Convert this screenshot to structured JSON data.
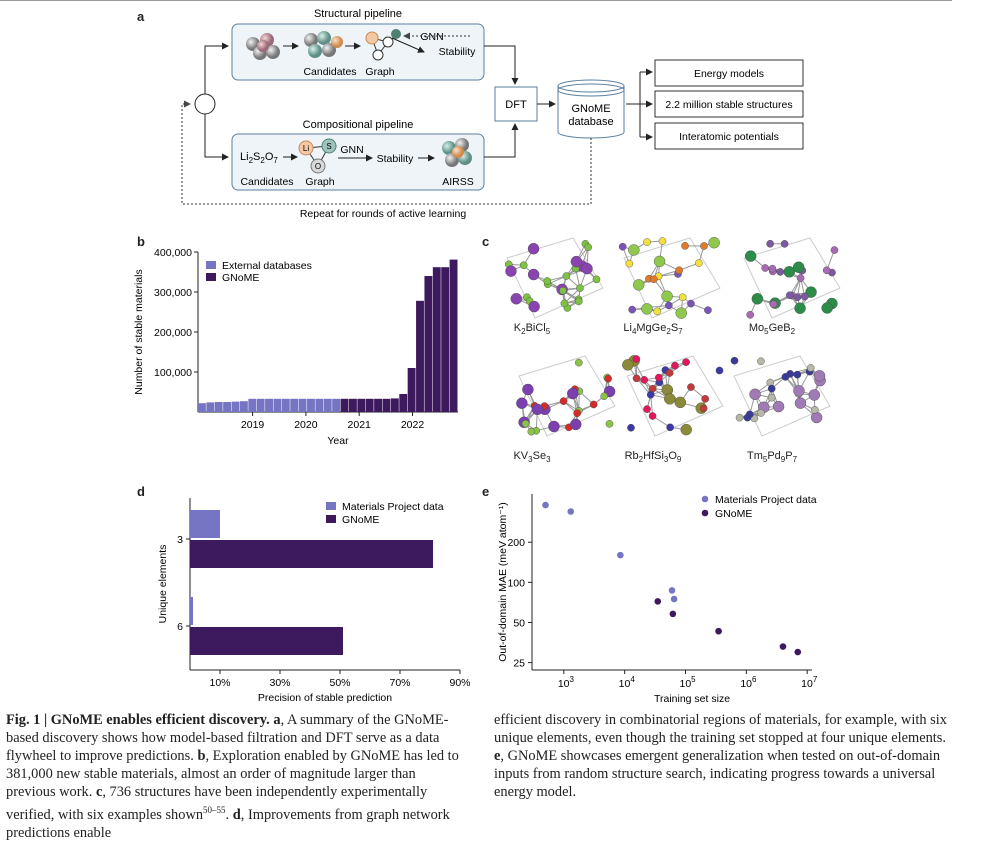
{
  "panel_a": {
    "letter": "a",
    "structural_title": "Structural pipeline",
    "compositional_title": "Compositional pipeline",
    "candidates": "Candidates",
    "graph": "Graph",
    "gnn": "GNN",
    "stability": "Stability",
    "airss": "AIRSS",
    "formula": [
      "Li",
      "2",
      "S",
      "2",
      "O",
      "7"
    ],
    "atom_li": "Li",
    "atom_s": "S",
    "atom_o": "O",
    "dft": "DFT",
    "db_line1": "GNoME",
    "db_line2": "database",
    "outputs": [
      "Energy models",
      "2.2 million stable structures",
      "Interatomic potentials"
    ],
    "loop_label": "Repeat for rounds of active learning"
  },
  "panel_b": {
    "letter": "b"
  },
  "panel_c": {
    "letter": "c",
    "crystals": [
      {
        "parts": [
          [
            "K",
            ""
          ],
          [
            "2",
            "sub"
          ],
          [
            "BiCl",
            ""
          ],
          [
            "5",
            "sub"
          ]
        ]
      },
      {
        "parts": [
          [
            "Li",
            ""
          ],
          [
            "4",
            "sub"
          ],
          [
            "MgGe",
            ""
          ],
          [
            "2",
            "sub"
          ],
          [
            "S",
            ""
          ],
          [
            "7",
            "sub"
          ]
        ]
      },
      {
        "parts": [
          [
            "Mo",
            ""
          ],
          [
            "5",
            "sub"
          ],
          [
            "GeB",
            ""
          ],
          [
            "2",
            "sub"
          ]
        ]
      },
      {
        "parts": [
          [
            "KV",
            ""
          ],
          [
            "3",
            "sub"
          ],
          [
            "Se",
            ""
          ],
          [
            "3",
            "sub"
          ]
        ]
      },
      {
        "parts": [
          [
            "Rb",
            ""
          ],
          [
            "2",
            "sub"
          ],
          [
            "HfSi",
            ""
          ],
          [
            "3",
            "sub"
          ],
          [
            "O",
            ""
          ],
          [
            "9",
            "sub"
          ]
        ]
      },
      {
        "parts": [
          [
            "Tm",
            ""
          ],
          [
            "5",
            "sub"
          ],
          [
            "Pd",
            ""
          ],
          [
            "9",
            "sub"
          ],
          [
            "P",
            ""
          ],
          [
            "7",
            "sub"
          ]
        ]
      }
    ]
  },
  "panel_d": {
    "letter": "d"
  },
  "panel_e": {
    "letter": "e"
  },
  "colors": {
    "external": "#7575c4",
    "gnome": "#3d1a5e"
  },
  "chart_data": [
    {
      "id": "b",
      "type": "bar",
      "xlabel": "Year",
      "ylabel": "Number of stable materials",
      "ylim": [
        0,
        400000
      ],
      "yticks": [
        100000,
        200000,
        300000,
        400000
      ],
      "ytick_labels": [
        "100,000",
        "200,000",
        "300,000",
        "400,000"
      ],
      "xticks": [
        "2019",
        "2020",
        "2021",
        "2022"
      ],
      "legend": "top-left",
      "series": [
        {
          "name": "External databases",
          "values": [
            22000,
            24000,
            25000,
            25000,
            26000,
            27000,
            33000,
            33000,
            33000,
            33000,
            33000,
            33000,
            33000,
            33000,
            33000,
            33000,
            33000,
            0,
            0,
            0,
            0,
            0,
            0,
            0,
            0,
            0,
            0,
            0,
            0,
            0,
            0
          ]
        },
        {
          "name": "GNoME",
          "values": [
            0,
            0,
            0,
            0,
            0,
            0,
            0,
            0,
            0,
            0,
            0,
            0,
            0,
            0,
            0,
            0,
            0,
            33000,
            33000,
            33000,
            33000,
            33000,
            33000,
            34000,
            45000,
            110000,
            278000,
            340000,
            362000,
            362000,
            381000
          ]
        }
      ]
    },
    {
      "id": "d",
      "type": "bar",
      "orientation": "horizontal",
      "xlabel": "Precision of stable prediction",
      "ylabel": "Unique elements",
      "categories": [
        "3",
        "6"
      ],
      "xlim": [
        0,
        90
      ],
      "xticks": [
        10,
        30,
        50,
        70,
        90
      ],
      "xtick_labels": [
        "10%",
        "30%",
        "50%",
        "70%",
        "90%"
      ],
      "legend": "top-right",
      "series": [
        {
          "name": "Materials Project data",
          "values": [
            10,
            1
          ]
        },
        {
          "name": "GNoME",
          "values": [
            81,
            51
          ]
        }
      ]
    },
    {
      "id": "e",
      "type": "scatter",
      "xlabel": "Training set size",
      "ylabel": "Out-of-domain MAE (meV atom⁻¹)",
      "xscale": "log",
      "yscale": "log",
      "xlim": [
        300,
        12000000
      ],
      "ylim": [
        22,
        460
      ],
      "xticks": [
        1000,
        10000,
        100000,
        1000000,
        10000000
      ],
      "xtick_exp": [
        "3",
        "4",
        "5",
        "6",
        "7"
      ],
      "yticks": [
        25,
        50,
        100,
        200
      ],
      "ytick_labels": [
        "25",
        "50",
        "100",
        "200"
      ],
      "legend": "top-right",
      "series": [
        {
          "name": "Materials Project data",
          "x": [
            500,
            1300,
            8500,
            60000,
            65000,
            350000
          ],
          "y": [
            380,
            340,
            160,
            87,
            75,
            43
          ]
        },
        {
          "name": "GNoME",
          "x": [
            35000,
            62000,
            350000,
            4000000,
            7000000
          ],
          "y": [
            72,
            58,
            43,
            33,
            30
          ]
        }
      ]
    }
  ],
  "caption_left": [
    {
      "t": "Fig. 1 | GNoME enables efficient discovery.",
      "b": true
    },
    {
      "t": " ",
      "b": false
    },
    {
      "t": "a",
      "b": true
    },
    {
      "t": ", A summary of the GNoME-based discovery shows how model-based filtration and DFT serve as a data flywheel to improve predictions. ",
      "b": false
    },
    {
      "t": "b",
      "b": true
    },
    {
      "t": ", Exploration enabled by GNoME has led to 381,000 new stable materials, almost an order of magnitude larger than previous work. ",
      "b": false
    },
    {
      "t": "c",
      "b": true
    },
    {
      "t": ", 736 structures have been independently experimentally verified, with six examples shown",
      "b": false
    },
    {
      "t": "50–55",
      "sup": true
    },
    {
      "t": ". ",
      "b": false
    },
    {
      "t": "d",
      "b": true
    },
    {
      "t": ", Improvements from graph network predictions enable",
      "b": false
    }
  ],
  "caption_right": [
    {
      "t": "efficient discovery in combinatorial regions of materials, for example, with six unique elements, even though the training set stopped at four unique elements. ",
      "b": false
    },
    {
      "t": "e",
      "b": true
    },
    {
      "t": ", GNoME showcases emergent generalization when tested on out-of-domain inputs from random structure search, indicating progress towards a universal energy model.",
      "b": false
    }
  ]
}
